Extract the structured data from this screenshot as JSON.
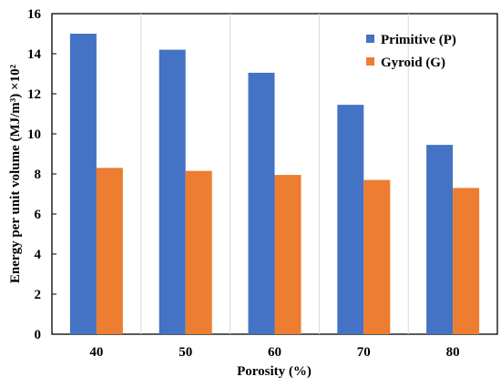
{
  "chart_data": {
    "type": "bar",
    "title": "",
    "xlabel": "Porosity (%)",
    "ylabel": "Energy per unit volume (MJ/m³) ×10²",
    "categories": [
      "40",
      "50",
      "60",
      "70",
      "80"
    ],
    "ylim": [
      0,
      16
    ],
    "yticks": [
      "0",
      "2",
      "4",
      "6",
      "8",
      "10",
      "12",
      "14",
      "16"
    ],
    "grid": "vertical",
    "legend_position": "top-right",
    "series": [
      {
        "name": "Primitive (P)",
        "color": "#4472C4",
        "values": [
          15.0,
          14.2,
          13.05,
          11.45,
          9.45
        ]
      },
      {
        "name": "Gyroid (G)",
        "color": "#ED7D31",
        "values": [
          8.3,
          8.15,
          7.95,
          7.7,
          7.3
        ]
      }
    ]
  }
}
